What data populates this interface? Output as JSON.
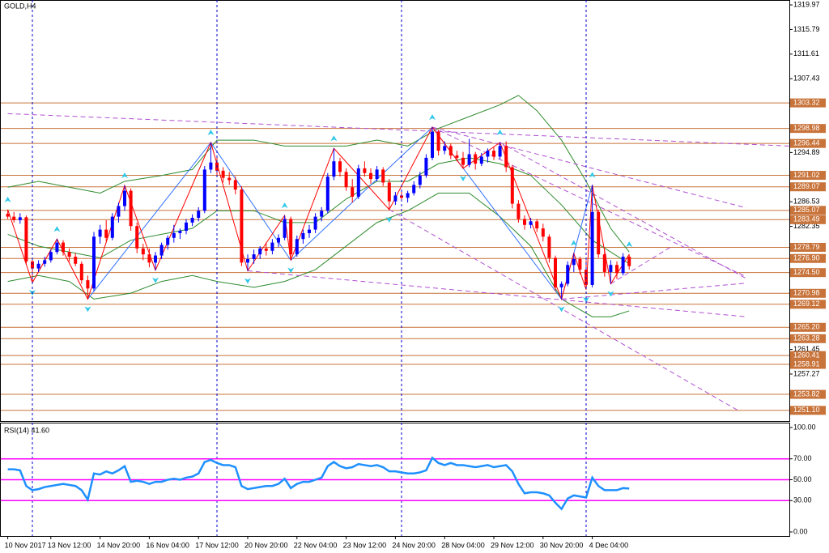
{
  "chart_data": [
    {
      "type": "candlestick",
      "title": "GOLD,H4",
      "up_color": "#0000ff",
      "down_color": "#ff0000",
      "ylim": [
        1249.29,
        1320.8
      ],
      "yticks": [
        1319.97,
        1315.79,
        1311.61,
        1307.43,
        1294.89,
        1286.53,
        1282.35,
        1261.45,
        1257.27
      ],
      "levels": [
        1303.32,
        1298.98,
        1296.44,
        1291.02,
        1289.07,
        1285.07,
        1283.49,
        1278.79,
        {
          "value": 1276.9,
          "label": "1276.90"
        },
        {
          "value": 1274.5,
          "label": "1274.50"
        },
        1270.98,
        1269.12,
        {
          "value": 1265.2,
          "label": "1265.20"
        },
        1263.28,
        1260.41,
        1258.91,
        1253.82,
        {
          "value": 1251.1,
          "label": "1251.10"
        }
      ],
      "level_color": "#c8733a",
      "separators": [
        4,
        34,
        64,
        94
      ],
      "separator_color": "#0000cc",
      "categories": [
        "10 Nov 2017",
        null,
        null,
        null,
        null,
        null,
        null,
        "13 Nov 12:00",
        null,
        null,
        null,
        null,
        null,
        null,
        null,
        "14 Nov 20:00",
        null,
        null,
        null,
        null,
        null,
        null,
        null,
        "16 Nov 04:00",
        null,
        null,
        null,
        null,
        null,
        null,
        null,
        "17 Nov 12:00",
        null,
        null,
        null,
        null,
        null,
        null,
        null,
        "20 Nov 20:00",
        null,
        null,
        null,
        null,
        null,
        null,
        null,
        "22 Nov 04:00",
        null,
        null,
        null,
        null,
        null,
        null,
        null,
        "23 Nov 12:00",
        null,
        null,
        null,
        null,
        null,
        null,
        null,
        "24 Nov 20:00",
        null,
        null,
        null,
        null,
        null,
        null,
        null,
        "28 Nov 04:00",
        null,
        null,
        null,
        null,
        null,
        null,
        null,
        "29 Nov 12:00",
        null,
        null,
        null,
        null,
        null,
        null,
        null,
        "30 Nov 20:00",
        null,
        null,
        null,
        null,
        null,
        null,
        null,
        "4 Dec 04:00",
        null,
        null,
        null,
        null,
        null,
        null
      ],
      "ohlc": [
        [
          1284.5,
          1285.2,
          1283.6,
          1284.0
        ],
        [
          1284.0,
          1284.8,
          1283.0,
          1283.4
        ],
        [
          1283.4,
          1284.6,
          1282.8,
          1283.9
        ],
        [
          1283.9,
          1284.2,
          1275.8,
          1276.4
        ],
        [
          1276.4,
          1277.0,
          1272.8,
          1275.2
        ],
        [
          1275.2,
          1276.6,
          1274.6,
          1276.0
        ],
        [
          1276.0,
          1277.2,
          1275.5,
          1276.6
        ],
        [
          1276.6,
          1278.4,
          1276.2,
          1278.0
        ],
        [
          1278.0,
          1280.2,
          1277.6,
          1279.6
        ],
        [
          1279.6,
          1280.0,
          1277.4,
          1278.0
        ],
        [
          1278.0,
          1278.6,
          1276.4,
          1277.2
        ],
        [
          1277.2,
          1277.8,
          1275.6,
          1276.0
        ],
        [
          1276.0,
          1276.4,
          1272.6,
          1273.2
        ],
        [
          1273.2,
          1274.0,
          1270.0,
          1271.8
        ],
        [
          1271.8,
          1281.4,
          1271.4,
          1280.6
        ],
        [
          1280.6,
          1282.6,
          1279.4,
          1281.8
        ],
        [
          1281.8,
          1283.4,
          1279.8,
          1280.4
        ],
        [
          1280.4,
          1284.6,
          1280.0,
          1284.0
        ],
        [
          1284.0,
          1286.4,
          1283.0,
          1285.8
        ],
        [
          1285.8,
          1289.3,
          1285.0,
          1288.4
        ],
        [
          1288.4,
          1288.8,
          1281.6,
          1282.4
        ],
        [
          1282.4,
          1283.0,
          1277.8,
          1278.6
        ],
        [
          1278.6,
          1279.4,
          1276.6,
          1277.6
        ],
        [
          1277.6,
          1278.6,
          1275.4,
          1276.2
        ],
        [
          1276.2,
          1278.0,
          1274.9,
          1277.4
        ],
        [
          1277.4,
          1279.6,
          1276.8,
          1279.2
        ],
        [
          1279.2,
          1280.8,
          1278.4,
          1280.4
        ],
        [
          1280.4,
          1282.6,
          1279.6,
          1281.2
        ],
        [
          1281.2,
          1282.0,
          1280.2,
          1281.6
        ],
        [
          1281.6,
          1283.6,
          1281.0,
          1283.0
        ],
        [
          1283.0,
          1284.4,
          1282.4,
          1283.8
        ],
        [
          1283.8,
          1285.6,
          1283.2,
          1285.0
        ],
        [
          1285.0,
          1292.6,
          1284.6,
          1292.0
        ],
        [
          1292.0,
          1296.6,
          1291.4,
          1293.2
        ],
        [
          1293.2,
          1294.0,
          1291.0,
          1291.8
        ],
        [
          1291.8,
          1292.4,
          1289.8,
          1290.6
        ],
        [
          1290.6,
          1291.6,
          1289.4,
          1290.2
        ],
        [
          1290.2,
          1290.8,
          1287.8,
          1288.6
        ],
        [
          1288.6,
          1289.2,
          1275.6,
          1276.2
        ],
        [
          1276.2,
          1277.6,
          1274.8,
          1276.8
        ],
        [
          1276.8,
          1278.4,
          1276.0,
          1277.6
        ],
        [
          1277.6,
          1279.0,
          1276.8,
          1278.6
        ],
        [
          1278.6,
          1279.6,
          1277.4,
          1278.2
        ],
        [
          1278.2,
          1280.2,
          1277.6,
          1279.6
        ],
        [
          1279.6,
          1281.0,
          1278.8,
          1280.4
        ],
        [
          1280.4,
          1284.2,
          1280.0,
          1283.6
        ],
        [
          1283.6,
          1284.0,
          1276.6,
          1277.6
        ],
        [
          1277.6,
          1280.8,
          1277.2,
          1280.2
        ],
        [
          1280.2,
          1281.8,
          1279.4,
          1281.2
        ],
        [
          1281.2,
          1282.6,
          1280.4,
          1281.8
        ],
        [
          1281.8,
          1284.6,
          1281.2,
          1284.0
        ],
        [
          1284.0,
          1285.6,
          1283.2,
          1285.0
        ],
        [
          1285.0,
          1291.4,
          1284.6,
          1290.8
        ],
        [
          1290.8,
          1295.6,
          1290.2,
          1293.4
        ],
        [
          1293.4,
          1294.0,
          1290.8,
          1291.6
        ],
        [
          1291.6,
          1292.2,
          1288.4,
          1289.0
        ],
        [
          1289.0,
          1290.4,
          1286.4,
          1287.4
        ],
        [
          1287.4,
          1292.8,
          1287.0,
          1292.2
        ],
        [
          1292.2,
          1293.4,
          1290.8,
          1291.4
        ],
        [
          1291.4,
          1292.2,
          1289.6,
          1290.4
        ],
        [
          1290.4,
          1292.6,
          1290.0,
          1292.0
        ],
        [
          1292.0,
          1292.4,
          1289.2,
          1289.8
        ],
        [
          1289.8,
          1290.4,
          1285.2,
          1286.6
        ],
        [
          1286.6,
          1288.2,
          1286.0,
          1287.6
        ],
        [
          1287.6,
          1288.6,
          1286.8,
          1287.2
        ],
        [
          1287.2,
          1288.4,
          1286.4,
          1288.0
        ],
        [
          1288.0,
          1290.0,
          1287.6,
          1289.4
        ],
        [
          1289.4,
          1291.6,
          1288.8,
          1291.0
        ],
        [
          1291.0,
          1294.6,
          1290.6,
          1294.0
        ],
        [
          1294.0,
          1299.2,
          1293.6,
          1298.4
        ],
        [
          1298.4,
          1298.8,
          1294.4,
          1295.2
        ],
        [
          1295.2,
          1296.8,
          1294.6,
          1296.0
        ],
        [
          1296.0,
          1296.4,
          1293.8,
          1294.4
        ],
        [
          1294.4,
          1295.2,
          1293.4,
          1294.0
        ],
        [
          1294.0,
          1295.0,
          1292.2,
          1292.8
        ],
        [
          1292.8,
          1297.2,
          1292.4,
          1294.6
        ],
        [
          1294.6,
          1295.0,
          1292.0,
          1293.0
        ],
        [
          1293.0,
          1294.8,
          1292.6,
          1294.2
        ],
        [
          1294.2,
          1295.6,
          1293.2,
          1295.2
        ],
        [
          1295.2,
          1295.8,
          1293.6,
          1294.2
        ],
        [
          1294.2,
          1296.6,
          1293.8,
          1296.0
        ],
        [
          1296.0,
          1296.8,
          1291.6,
          1292.4
        ],
        [
          1292.4,
          1292.8,
          1285.4,
          1286.2
        ],
        [
          1286.2,
          1286.8,
          1283.0,
          1283.6
        ],
        [
          1283.6,
          1284.2,
          1281.8,
          1282.6
        ],
        [
          1282.6,
          1283.8,
          1282.0,
          1283.2
        ],
        [
          1283.2,
          1283.6,
          1281.4,
          1282.0
        ],
        [
          1282.0,
          1282.8,
          1279.8,
          1280.6
        ],
        [
          1280.6,
          1281.0,
          1276.2,
          1277.0
        ],
        [
          1277.0,
          1277.4,
          1271.4,
          1272.0
        ],
        [
          1272.0,
          1273.0,
          1270.0,
          1272.6
        ],
        [
          1272.6,
          1276.4,
          1272.2,
          1275.8
        ],
        [
          1275.8,
          1277.8,
          1274.6,
          1276.8
        ],
        [
          1276.8,
          1277.2,
          1274.2,
          1275.0
        ],
        [
          1275.0,
          1276.6,
          1271.6,
          1272.4
        ],
        [
          1272.4,
          1289.4,
          1272.0,
          1284.8
        ],
        [
          1284.8,
          1285.2,
          1277.0,
          1277.6
        ],
        [
          1277.6,
          1278.4,
          1273.8,
          1274.6
        ],
        [
          1274.6,
          1276.6,
          1272.6,
          1275.8
        ],
        [
          1275.8,
          1276.4,
          1273.4,
          1274.4
        ],
        [
          1274.4,
          1277.8,
          1274.0,
          1277.2
        ],
        [
          1277.2,
          1277.6,
          1275.0,
          1275.6
        ]
      ],
      "bands": [
        {
          "color": "#2e8b2e",
          "x": [
            0,
            5,
            10,
            15,
            19,
            25,
            30,
            34,
            40,
            45,
            50,
            55,
            60,
            65,
            70,
            75,
            80,
            83,
            86,
            90,
            94,
            98,
            101
          ],
          "values": [
            1289,
            1290,
            1289,
            1288,
            1290,
            1291,
            1292,
            1297,
            1297,
            1296,
            1296,
            1296,
            1297,
            1296,
            1299,
            1301,
            1303,
            1304.6,
            1302,
            1297,
            1290,
            1282,
            1278
          ]
        },
        {
          "color": "#2e8b2e",
          "x": [
            0,
            5,
            10,
            15,
            20,
            25,
            30,
            34,
            40,
            45,
            50,
            55,
            60,
            65,
            70,
            75,
            80,
            85,
            90,
            95,
            98,
            101
          ],
          "values": [
            1281,
            1279,
            1278,
            1277,
            1280,
            1281,
            1282,
            1285,
            1285,
            1283,
            1283,
            1287,
            1290,
            1290,
            1293,
            1294,
            1293,
            1291,
            1286,
            1280,
            1278,
            1276
          ]
        },
        {
          "color": "#2e8b2e",
          "x": [
            0,
            5,
            10,
            14,
            20,
            25,
            30,
            34,
            40,
            45,
            50,
            55,
            60,
            65,
            70,
            75,
            80,
            85,
            90,
            95,
            98,
            101
          ],
          "values": [
            1273,
            1274,
            1273,
            1270,
            1271,
            1273,
            1274,
            1273,
            1272,
            1273,
            1275,
            1279,
            1283,
            1285,
            1288,
            1288,
            1284,
            1279,
            1270,
            1267,
            1267,
            1268
          ]
        }
      ],
      "zigzag": {
        "color": "#ff0000",
        "x": [
          0,
          4,
          8,
          13,
          19,
          24,
          33,
          39,
          45,
          46,
          53,
          62,
          69,
          74,
          80,
          90,
          92,
          94,
          95,
          98,
          101
        ],
        "values": [
          1285.2,
          1272.8,
          1280.2,
          1270.0,
          1289.3,
          1274.9,
          1296.6,
          1274.8,
          1284.2,
          1276.6,
          1295.6,
          1285.2,
          1299.2,
          1292.2,
          1296.6,
          1270.0,
          1277.8,
          1271.6,
          1289.4,
          1272.6,
          1277.6
        ]
      },
      "zigzag2": {
        "color": "#3070ff",
        "x": [
          13,
          33,
          46,
          69,
          90,
          95
        ],
        "values": [
          1270.0,
          1296.6,
          1276.6,
          1299.2,
          1270.0,
          1289.4
        ]
      },
      "trend_color": "#b050d0",
      "trendlines": [
        {
          "x": [
            0,
            127
          ],
          "values": [
            1301.5,
            1296.0
          ]
        },
        {
          "x": [
            69,
            120
          ],
          "values": [
            1299.2,
            1285.5
          ]
        },
        {
          "x": [
            80,
            120
          ],
          "values": [
            1296.6,
            1273.5
          ]
        },
        {
          "x": [
            69,
            120
          ],
          "values": [
            1299.2,
            1273.8
          ]
        },
        {
          "x": [
            39,
            120
          ],
          "values": [
            1274.8,
            1267.0
          ]
        },
        {
          "x": [
            90,
            120
          ],
          "values": [
            1270.0,
            1272.7
          ]
        },
        {
          "x": [
            62,
            119
          ],
          "values": [
            1285.2,
            1250.9
          ]
        },
        {
          "x": [
            98,
            108
          ],
          "values": [
            1272.6,
            1279.0
          ]
        }
      ],
      "fractal_color": "#30c8e8"
    },
    {
      "type": "line",
      "title": "RSI(14) 41.60",
      "color": "#1e90ff",
      "ylim": [
        0,
        100
      ],
      "yticks": [
        {
          "value": 100,
          "label": "100.00"
        },
        {
          "value": 70,
          "label": "70.00"
        },
        {
          "value": 50,
          "label": "50.00"
        },
        {
          "value": 30,
          "label": "30.00"
        },
        {
          "value": 0,
          "label": "0.00"
        }
      ],
      "levels": [
        70,
        50,
        30
      ],
      "level_color": "#ff00ff",
      "values": [
        60,
        60,
        59,
        44,
        40,
        41,
        43,
        44,
        45,
        46,
        45,
        44,
        40,
        31,
        56,
        55,
        58,
        56,
        59,
        63,
        48,
        49,
        48,
        46,
        48,
        48,
        50,
        51,
        50,
        52,
        53,
        56,
        67,
        69,
        66,
        64,
        64,
        62,
        44,
        41,
        42,
        43,
        44,
        44,
        46,
        51,
        42,
        46,
        48,
        48,
        50,
        52,
        63,
        67,
        63,
        61,
        62,
        65,
        64,
        63,
        64,
        62,
        58,
        58,
        57,
        56,
        56,
        57,
        59,
        71,
        66,
        64,
        66,
        64,
        64,
        63,
        62,
        63,
        64,
        62,
        63,
        64,
        58,
        46,
        37,
        38,
        38,
        37,
        35,
        28,
        22,
        32,
        35,
        34,
        33,
        52,
        44,
        40,
        40,
        40,
        42,
        41.6
      ]
    }
  ]
}
